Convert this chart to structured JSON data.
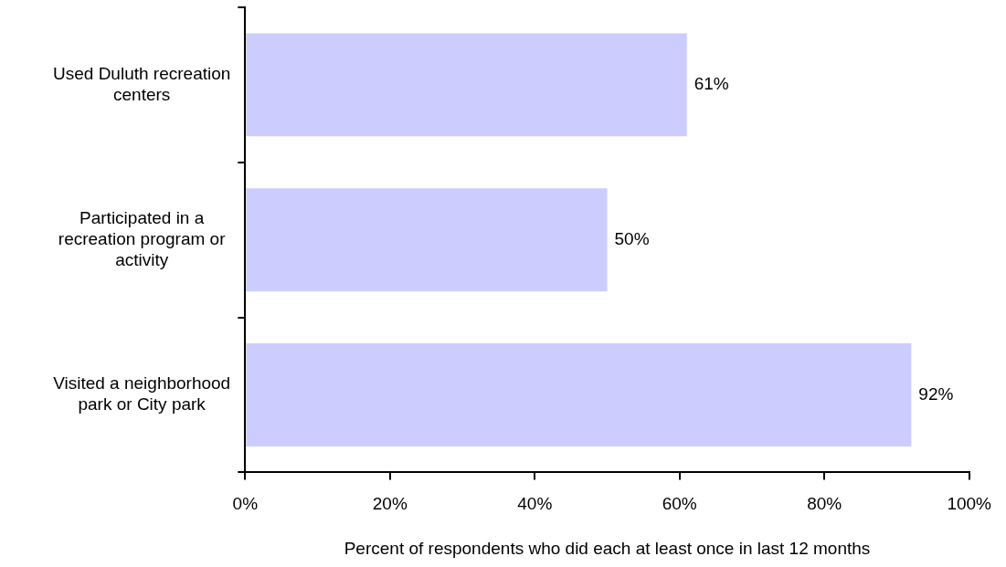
{
  "chart_data": {
    "type": "bar",
    "orientation": "horizontal",
    "categories": [
      "Used Duluth recreation centers",
      "Participated in a recreation program or activity",
      "Visited a neighborhood park or City park"
    ],
    "values": [
      61,
      50,
      92
    ],
    "color": "#ccccff",
    "value_labels": [
      "61%",
      "50%",
      "92%"
    ],
    "xlabel": "Percent of respondents who did each at least once in last 12 months",
    "xlim": [
      0,
      100
    ],
    "xticks": [
      {
        "value": 0,
        "label": "0%"
      },
      {
        "value": 20,
        "label": "20%"
      },
      {
        "value": 40,
        "label": "40%"
      },
      {
        "value": 60,
        "label": "60%"
      },
      {
        "value": 80,
        "label": "80%"
      },
      {
        "value": 100,
        "label": "100%"
      }
    ]
  }
}
